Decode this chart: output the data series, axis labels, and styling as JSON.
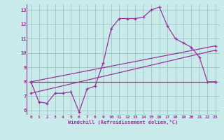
{
  "xlabel": "Windchill (Refroidissement éolien,°C)",
  "background_color": "#c8eaea",
  "line_color": "#993399",
  "grid_color": "#99bbbb",
  "font_color": "#993399",
  "xlim": [
    -0.5,
    23.5
  ],
  "ylim": [
    5.7,
    13.4
  ],
  "xticks": [
    0,
    1,
    2,
    3,
    4,
    5,
    6,
    7,
    8,
    9,
    10,
    11,
    12,
    13,
    14,
    15,
    16,
    17,
    18,
    19,
    20,
    21,
    22,
    23
  ],
  "yticks": [
    6,
    7,
    8,
    9,
    10,
    11,
    12,
    13
  ],
  "series1": [
    8.0,
    6.6,
    6.5,
    7.2,
    7.2,
    7.3,
    5.9,
    7.5,
    7.7,
    9.3,
    11.7,
    12.4,
    12.4,
    12.4,
    12.5,
    13.0,
    13.2,
    11.9,
    11.0,
    10.7,
    10.4,
    9.7,
    8.0,
    8.0
  ],
  "series2_x": [
    0,
    23
  ],
  "series2_y": [
    8.0,
    8.0
  ],
  "series3_x": [
    0,
    23
  ],
  "series3_y": [
    8.0,
    10.5
  ],
  "series4_x": [
    0,
    23
  ],
  "series4_y": [
    7.2,
    10.2
  ]
}
